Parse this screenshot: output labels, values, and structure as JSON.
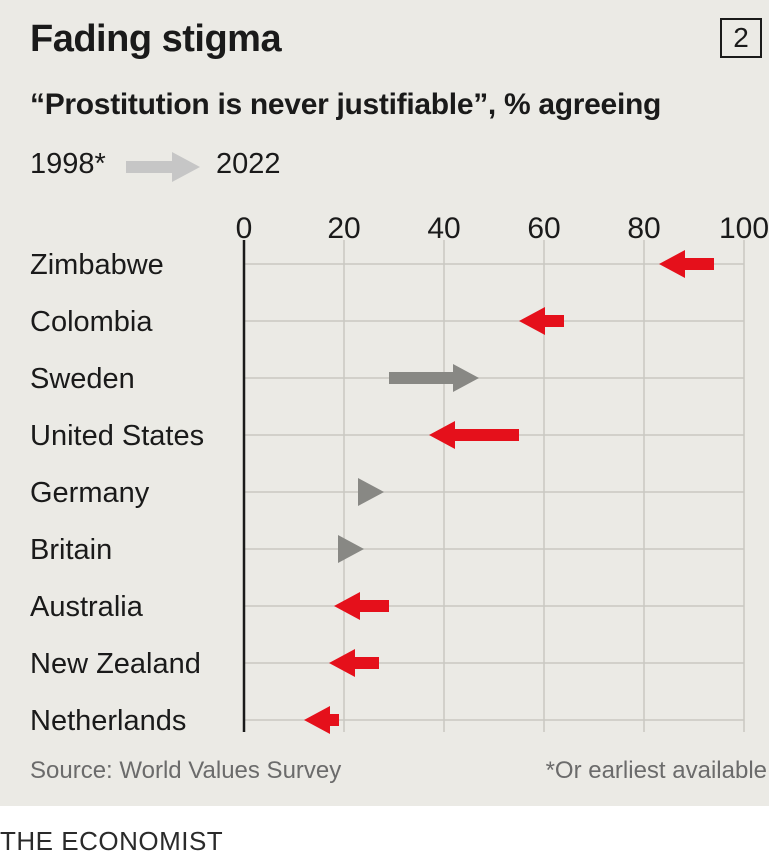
{
  "title": "Fading stigma",
  "chart_number": "2",
  "subtitle": "“Prostitution is never justifiable”, % agreeing",
  "legend": {
    "from": "1998*",
    "to": "2022"
  },
  "source": "Source: World Values Survey",
  "footnote": "*Or earliest available",
  "brand": "THE ECONOMIST",
  "colors": {
    "decrease": "#e5101b",
    "increase": "#888884",
    "legend_arrow": "#c6c6c6",
    "grid": "#c9c8c2",
    "background": "#ebeae5"
  },
  "chart_data": {
    "type": "arrow",
    "xlim": [
      0,
      100
    ],
    "ticks": [
      0,
      20,
      40,
      60,
      80,
      100
    ],
    "tick_labels": [
      "0",
      "20",
      "40",
      "60",
      "80",
      "100"
    ],
    "grid": true,
    "categories": [
      "Zimbabwe",
      "Colombia",
      "Sweden",
      "United States",
      "Germany",
      "Britain",
      "Australia",
      "New Zealand",
      "Netherlands"
    ],
    "series": [
      {
        "name": "1998*",
        "values": [
          94,
          64,
          29,
          55,
          23,
          19,
          29,
          27,
          19
        ]
      },
      {
        "name": "2022",
        "values": [
          83,
          55,
          47,
          37,
          28,
          24,
          18,
          17,
          12
        ]
      }
    ]
  }
}
